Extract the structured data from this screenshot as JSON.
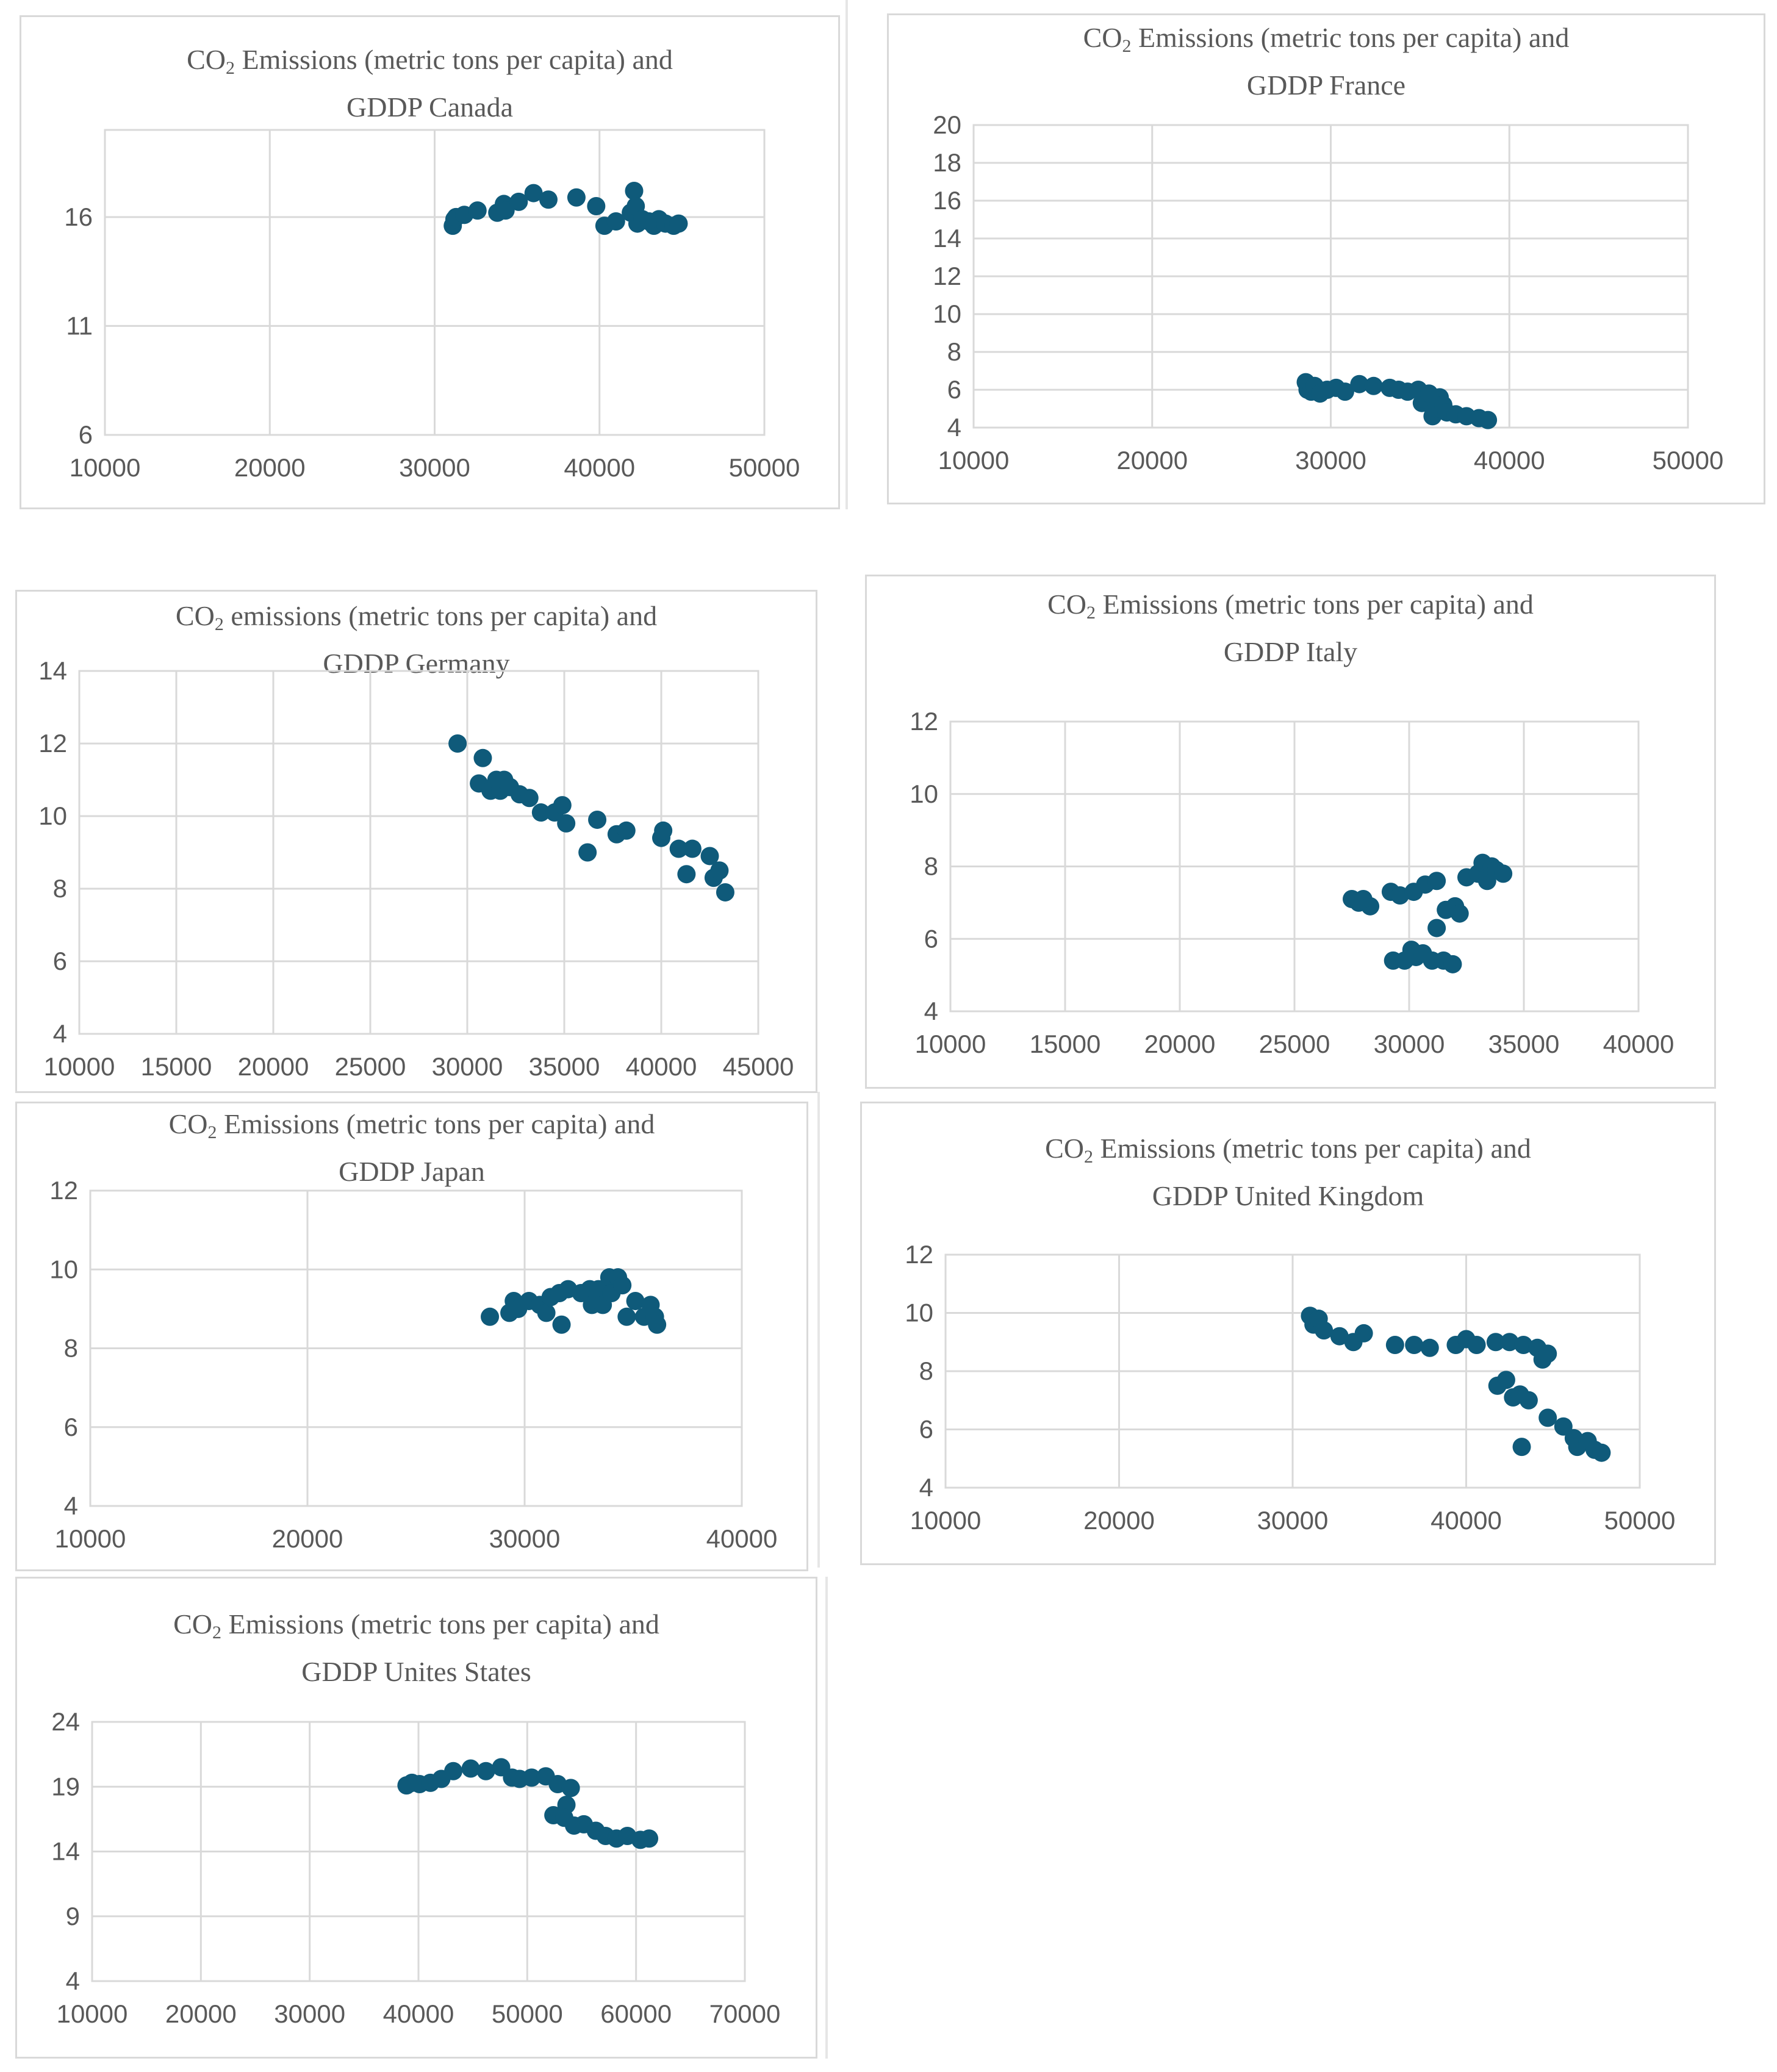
{
  "chart_data": [
    {
      "id": "canada",
      "type": "scatter",
      "title": {
        "prefix": "CO",
        "sub": "2",
        "rest": " Emissions (metric tons per capita) and",
        "line2": "GDDP Canada"
      },
      "xlabel": "",
      "ylabel": "",
      "xlim": [
        10000,
        50000
      ],
      "ylim": [
        6,
        20
      ],
      "xticks": [
        "10000",
        "20000",
        "30000",
        "40000",
        "50000"
      ],
      "yticks": [
        "6",
        "11",
        "16"
      ],
      "grid": true,
      "legend": "none",
      "marker_color": "#0f5a7a",
      "points": [
        [
          31100,
          15.6
        ],
        [
          31200,
          15.9
        ],
        [
          31300,
          16.0
        ],
        [
          31800,
          16.1
        ],
        [
          32600,
          16.3
        ],
        [
          33800,
          16.2
        ],
        [
          34200,
          16.6
        ],
        [
          34300,
          16.3
        ],
        [
          35100,
          16.7
        ],
        [
          36000,
          17.1
        ],
        [
          36900,
          16.8
        ],
        [
          38600,
          16.9
        ],
        [
          39800,
          16.5
        ],
        [
          40300,
          15.6
        ],
        [
          41000,
          15.8
        ],
        [
          41900,
          16.2
        ],
        [
          42100,
          17.2
        ],
        [
          42200,
          16.5
        ],
        [
          42300,
          15.7
        ],
        [
          42600,
          15.9
        ],
        [
          43000,
          15.8
        ],
        [
          43300,
          15.6
        ],
        [
          43600,
          15.9
        ],
        [
          44000,
          15.7
        ],
        [
          44500,
          15.6
        ],
        [
          44800,
          15.7
        ]
      ]
    },
    {
      "id": "france",
      "type": "scatter",
      "title": {
        "prefix": "CO",
        "sub": "2",
        "rest": " Emissions (metric tons per capita) and",
        "line2": "GDDP France"
      },
      "xlabel": "",
      "ylabel": "",
      "xlim": [
        10000,
        50000
      ],
      "ylim": [
        4,
        20
      ],
      "xticks": [
        "10000",
        "20000",
        "30000",
        "40000",
        "50000"
      ],
      "yticks": [
        "4",
        "6",
        "8",
        "10",
        "12",
        "14",
        "16",
        "18",
        "20"
      ],
      "grid": true,
      "legend": "none",
      "marker_color": "#0f5a7a",
      "points": [
        [
          28600,
          6.4
        ],
        [
          28700,
          6.0
        ],
        [
          28900,
          5.9
        ],
        [
          29100,
          6.2
        ],
        [
          29400,
          5.8
        ],
        [
          29800,
          6.0
        ],
        [
          30300,
          6.1
        ],
        [
          30800,
          5.9
        ],
        [
          31600,
          6.3
        ],
        [
          32400,
          6.2
        ],
        [
          33300,
          6.1
        ],
        [
          33800,
          6.0
        ],
        [
          34300,
          5.9
        ],
        [
          34900,
          6.0
        ],
        [
          35100,
          5.3
        ],
        [
          35300,
          5.5
        ],
        [
          35500,
          5.8
        ],
        [
          35700,
          4.6
        ],
        [
          35900,
          5.0
        ],
        [
          36100,
          5.6
        ],
        [
          36300,
          5.2
        ],
        [
          36500,
          4.8
        ],
        [
          37000,
          4.7
        ],
        [
          37600,
          4.6
        ],
        [
          38300,
          4.5
        ],
        [
          38800,
          4.4
        ]
      ]
    },
    {
      "id": "germany",
      "type": "scatter",
      "title": {
        "prefix": "CO",
        "sub": "2",
        "rest": " emissions (metric tons per capita) and",
        "line2": "GDDP Germany"
      },
      "xlabel": "",
      "ylabel": "",
      "xlim": [
        10000,
        45000
      ],
      "ylim": [
        4,
        14
      ],
      "xticks": [
        "10000",
        "15000",
        "20000",
        "25000",
        "30000",
        "35000",
        "40000",
        "45000"
      ],
      "yticks": [
        "4",
        "6",
        "8",
        "10",
        "12",
        "14"
      ],
      "grid": true,
      "legend": "none",
      "marker_color": "#0f5a7a",
      "points": [
        [
          29500,
          12.0
        ],
        [
          30600,
          10.9
        ],
        [
          30800,
          11.6
        ],
        [
          31200,
          10.7
        ],
        [
          31500,
          11.0
        ],
        [
          31700,
          10.7
        ],
        [
          31900,
          11.0
        ],
        [
          32200,
          10.8
        ],
        [
          32700,
          10.6
        ],
        [
          33200,
          10.5
        ],
        [
          33800,
          10.1
        ],
        [
          34500,
          10.1
        ],
        [
          34900,
          10.3
        ],
        [
          35100,
          9.8
        ],
        [
          36200,
          9.0
        ],
        [
          36700,
          9.9
        ],
        [
          37700,
          9.5
        ],
        [
          38200,
          9.6
        ],
        [
          40000,
          9.4
        ],
        [
          40100,
          9.6
        ],
        [
          40900,
          9.1
        ],
        [
          41300,
          8.4
        ],
        [
          41600,
          9.1
        ],
        [
          42500,
          8.9
        ],
        [
          42700,
          8.3
        ],
        [
          43000,
          8.5
        ],
        [
          43300,
          7.9
        ]
      ]
    },
    {
      "id": "italy",
      "type": "scatter",
      "title": {
        "prefix": "CO",
        "sub": "2",
        "rest": " Emissions (metric tons per capita) and",
        "line2": "GDDP Italy"
      },
      "xlabel": "",
      "ylabel": "",
      "xlim": [
        10000,
        40000
      ],
      "ylim": [
        4,
        12
      ],
      "xticks": [
        "10000",
        "15000",
        "20000",
        "25000",
        "30000",
        "35000",
        "40000"
      ],
      "yticks": [
        "4",
        "6",
        "8",
        "10",
        "12"
      ],
      "grid": true,
      "legend": "none",
      "marker_color": "#0f5a7a",
      "points": [
        [
          27500,
          7.1
        ],
        [
          27800,
          7.0
        ],
        [
          28300,
          6.9
        ],
        [
          28000,
          7.1
        ],
        [
          29200,
          7.3
        ],
        [
          29600,
          7.2
        ],
        [
          30200,
          7.3
        ],
        [
          30700,
          7.5
        ],
        [
          31200,
          7.6
        ],
        [
          29300,
          5.4
        ],
        [
          29800,
          5.4
        ],
        [
          30100,
          5.7
        ],
        [
          30300,
          5.5
        ],
        [
          30600,
          5.6
        ],
        [
          31000,
          5.4
        ],
        [
          31500,
          5.4
        ],
        [
          31900,
          5.3
        ],
        [
          31200,
          6.3
        ],
        [
          31600,
          6.8
        ],
        [
          32000,
          6.9
        ],
        [
          32200,
          6.7
        ],
        [
          32500,
          7.7
        ],
        [
          33000,
          7.8
        ],
        [
          33200,
          8.1
        ],
        [
          33400,
          7.6
        ],
        [
          33600,
          8.0
        ],
        [
          33800,
          7.9
        ],
        [
          34100,
          7.8
        ]
      ]
    },
    {
      "id": "japan",
      "type": "scatter",
      "title": {
        "prefix": "CO",
        "sub": "2",
        "rest": " Emissions (metric tons per capita) and",
        "line2": "GDDP Japan"
      },
      "xlabel": "",
      "ylabel": "",
      "xlim": [
        10000,
        40000
      ],
      "ylim": [
        4,
        12
      ],
      "xticks": [
        "10000",
        "20000",
        "30000",
        "40000"
      ],
      "yticks": [
        "4",
        "6",
        "8",
        "10",
        "12"
      ],
      "grid": true,
      "legend": "none",
      "marker_color": "#0f5a7a",
      "points": [
        [
          28400,
          8.8
        ],
        [
          29300,
          8.9
        ],
        [
          29500,
          9.2
        ],
        [
          29700,
          9.0
        ],
        [
          30200,
          9.2
        ],
        [
          30700,
          9.1
        ],
        [
          31000,
          8.9
        ],
        [
          31200,
          9.3
        ],
        [
          31600,
          9.4
        ],
        [
          31700,
          8.6
        ],
        [
          32000,
          9.5
        ],
        [
          32600,
          9.4
        ],
        [
          33000,
          9.5
        ],
        [
          33100,
          9.1
        ],
        [
          33400,
          9.5
        ],
        [
          33600,
          9.1
        ],
        [
          33900,
          9.8
        ],
        [
          34000,
          9.4
        ],
        [
          34300,
          9.8
        ],
        [
          34500,
          9.6
        ],
        [
          34700,
          8.8
        ],
        [
          35100,
          9.2
        ],
        [
          35500,
          8.8
        ],
        [
          35800,
          9.1
        ],
        [
          36000,
          8.8
        ],
        [
          36100,
          8.6
        ]
      ]
    },
    {
      "id": "uk",
      "type": "scatter",
      "title": {
        "prefix": "CO",
        "sub": "2",
        "rest": " Emissions (metric tons per capita) and",
        "line2": "GDDP United Kingdom"
      },
      "xlabel": "",
      "ylabel": "",
      "xlim": [
        10000,
        50000
      ],
      "ylim": [
        4,
        12
      ],
      "xticks": [
        "10000",
        "20000",
        "30000",
        "40000",
        "50000"
      ],
      "yticks": [
        "4",
        "6",
        "8",
        "10",
        "12"
      ],
      "grid": true,
      "legend": "none",
      "marker_color": "#0f5a7a",
      "points": [
        [
          31000,
          9.9
        ],
        [
          31200,
          9.6
        ],
        [
          31500,
          9.8
        ],
        [
          31800,
          9.4
        ],
        [
          32700,
          9.2
        ],
        [
          33500,
          9.0
        ],
        [
          34100,
          9.3
        ],
        [
          35900,
          8.9
        ],
        [
          37000,
          8.9
        ],
        [
          37900,
          8.8
        ],
        [
          39400,
          8.9
        ],
        [
          40000,
          9.1
        ],
        [
          40600,
          8.9
        ],
        [
          41700,
          9.0
        ],
        [
          42500,
          9.0
        ],
        [
          43300,
          8.9
        ],
        [
          44100,
          8.8
        ],
        [
          44400,
          8.4
        ],
        [
          44700,
          8.6
        ],
        [
          41800,
          7.5
        ],
        [
          42300,
          7.7
        ],
        [
          42700,
          7.1
        ],
        [
          43100,
          7.2
        ],
        [
          43600,
          7.0
        ],
        [
          43200,
          5.4
        ],
        [
          44700,
          6.4
        ],
        [
          45600,
          6.1
        ],
        [
          46200,
          5.7
        ],
        [
          46400,
          5.4
        ],
        [
          47000,
          5.6
        ],
        [
          47400,
          5.3
        ],
        [
          47800,
          5.2
        ]
      ]
    },
    {
      "id": "us",
      "type": "scatter",
      "title": {
        "prefix": "CO",
        "sub": "2",
        "rest": " Emissions (metric tons per capita) and",
        "line2": "GDDP Unites States"
      },
      "xlabel": "",
      "ylabel": "",
      "xlim": [
        10000,
        70000
      ],
      "ylim": [
        4,
        24
      ],
      "xticks": [
        "10000",
        "20000",
        "30000",
        "40000",
        "50000",
        "60000",
        "70000"
      ],
      "yticks": [
        "4",
        "9",
        "14",
        "19",
        "24"
      ],
      "grid": true,
      "legend": "none",
      "marker_color": "#0f5a7a",
      "points": [
        [
          38900,
          19.1
        ],
        [
          39400,
          19.3
        ],
        [
          40100,
          19.2
        ],
        [
          41100,
          19.3
        ],
        [
          42100,
          19.6
        ],
        [
          43200,
          20.2
        ],
        [
          44800,
          20.4
        ],
        [
          46200,
          20.2
        ],
        [
          47600,
          20.5
        ],
        [
          48600,
          19.7
        ],
        [
          49300,
          19.6
        ],
        [
          50400,
          19.7
        ],
        [
          51700,
          19.8
        ],
        [
          52800,
          19.2
        ],
        [
          53600,
          17.6
        ],
        [
          54000,
          18.9
        ],
        [
          52400,
          16.8
        ],
        [
          53400,
          16.6
        ],
        [
          54300,
          16.0
        ],
        [
          55200,
          16.1
        ],
        [
          56300,
          15.6
        ],
        [
          57200,
          15.2
        ],
        [
          58200,
          15.0
        ],
        [
          59200,
          15.2
        ],
        [
          60400,
          14.9
        ],
        [
          61200,
          15.0
        ]
      ]
    }
  ]
}
